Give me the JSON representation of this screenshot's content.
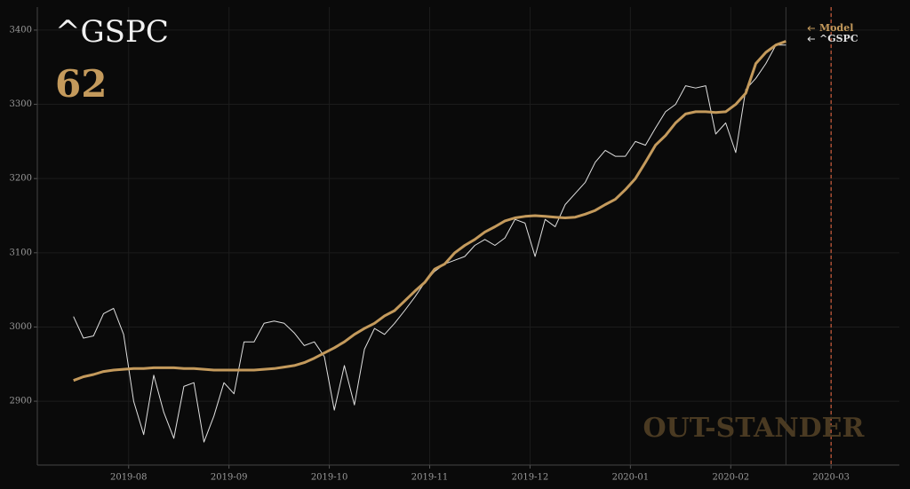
{
  "chart_data": {
    "type": "line",
    "title": "^GSPC",
    "score": "62",
    "watermark": "OUT-STANDER",
    "x": [
      0.45,
      0.55,
      0.65,
      0.75,
      0.85,
      0.95,
      1.05,
      1.15,
      1.25,
      1.35,
      1.45,
      1.55,
      1.65,
      1.75,
      1.85,
      1.95,
      2.05,
      2.15,
      2.25,
      2.35,
      2.45,
      2.55,
      2.65,
      2.75,
      2.85,
      2.95,
      3.05,
      3.15,
      3.25,
      3.35,
      3.45,
      3.55,
      3.65,
      3.75,
      3.85,
      3.95,
      4.05,
      4.15,
      4.25,
      4.35,
      4.45,
      4.55,
      4.65,
      4.75,
      4.85,
      4.95,
      5.05,
      5.15,
      5.25,
      5.35,
      5.45,
      5.55,
      5.65,
      5.75,
      5.85,
      5.95,
      6.05,
      6.15,
      6.25,
      6.35,
      6.45,
      6.55,
      6.65,
      6.75,
      6.85,
      6.95,
      7.05,
      7.15,
      7.25,
      7.35,
      7.45,
      7.55
    ],
    "series": [
      {
        "name": "Model",
        "color": "#c49a5c",
        "width": 3,
        "values": [
          2928,
          2933,
          2936,
          2940,
          2942,
          2943,
          2944,
          2944,
          2945,
          2945,
          2945,
          2944,
          2944,
          2943,
          2942,
          2942,
          2942,
          2942,
          2942,
          2943,
          2944,
          2946,
          2948,
          2952,
          2958,
          2965,
          2972,
          2980,
          2990,
          2998,
          3005,
          3015,
          3022,
          3035,
          3048,
          3060,
          3078,
          3085,
          3100,
          3110,
          3118,
          3128,
          3135,
          3143,
          3147,
          3149,
          3150,
          3149,
          3148,
          3147,
          3148,
          3152,
          3157,
          3165,
          3172,
          3185,
          3200,
          3222,
          3245,
          3258,
          3275,
          3287,
          3290,
          3290,
          3289,
          3290,
          3300,
          3315,
          3355,
          3370,
          3380,
          3385
        ]
      },
      {
        "name": "^GSPC",
        "color": "#e0e0e0",
        "width": 1,
        "values": [
          3014,
          2985,
          2988,
          3018,
          3025,
          2990,
          2900,
          2855,
          2935,
          2885,
          2850,
          2920,
          2925,
          2845,
          2880,
          2925,
          2910,
          2980,
          2980,
          3005,
          3008,
          3005,
          2992,
          2975,
          2980,
          2960,
          2888,
          2948,
          2895,
          2970,
          2998,
          2990,
          3005,
          3022,
          3040,
          3060,
          3075,
          3085,
          3090,
          3095,
          3110,
          3118,
          3110,
          3120,
          3145,
          3140,
          3095,
          3145,
          3135,
          3165,
          3180,
          3195,
          3222,
          3238,
          3230,
          3230,
          3250,
          3245,
          3268,
          3290,
          3300,
          3325,
          3322,
          3325,
          3260,
          3275,
          3235,
          3320,
          3335,
          3355,
          3380,
          3380
        ]
      }
    ],
    "xlim": [
      0.09,
      8.68
    ],
    "xticks": [
      {
        "value": 1,
        "label": "2019-08"
      },
      {
        "value": 2,
        "label": "2019-09"
      },
      {
        "value": 3,
        "label": "2019-10"
      },
      {
        "value": 4,
        "label": "2019-11"
      },
      {
        "value": 5,
        "label": "2019-12"
      },
      {
        "value": 6,
        "label": "2020-01"
      },
      {
        "value": 7,
        "label": "2020-02"
      },
      {
        "value": 8,
        "label": "2020-03"
      }
    ],
    "ylim": [
      2814,
      3431
    ],
    "yticks": [
      2900,
      3000,
      3100,
      3200,
      3300,
      3400
    ],
    "grid": true
  }
}
